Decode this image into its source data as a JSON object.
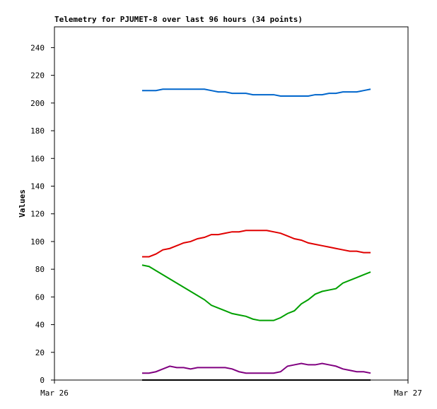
{
  "chart_data": {
    "type": "line",
    "title": "Telemetry for PJUMET-8 over last 96 hours (34 points)",
    "y_label": "Values",
    "x": [
      5.95,
      6.42,
      6.89,
      7.36,
      7.83,
      8.3,
      8.77,
      9.24,
      9.71,
      10.18,
      10.65,
      11.12,
      11.59,
      12.06,
      12.53,
      13.0,
      13.47,
      13.94,
      14.41,
      14.88,
      15.35,
      15.82,
      16.29,
      16.76,
      17.23,
      17.7,
      18.17,
      18.64,
      19.11,
      19.58,
      20.05,
      20.52,
      20.99,
      21.46
    ],
    "xlim": [
      0,
      24
    ],
    "xticks": [
      {
        "value": 0,
        "label": "Mar 26"
      },
      {
        "value": 24,
        "label": "Mar 27"
      }
    ],
    "ylim": [
      0,
      255
    ],
    "yticks": [
      0,
      20,
      40,
      60,
      80,
      100,
      120,
      140,
      160,
      180,
      200,
      220,
      240
    ],
    "grid": false,
    "series": [
      {
        "color": "#0066cc",
        "values": [
          209,
          209,
          209,
          210,
          210,
          210,
          210,
          210,
          210,
          210,
          209,
          208,
          208,
          207,
          207,
          207,
          206,
          206,
          206,
          206,
          205,
          205,
          205,
          205,
          205,
          206,
          206,
          207,
          207,
          208,
          208,
          208,
          209,
          210
        ]
      },
      {
        "color": "#e00000",
        "values": [
          89,
          89,
          91,
          94,
          95,
          97,
          99,
          100,
          102,
          103,
          105,
          105,
          106,
          107,
          107,
          108,
          108,
          108,
          108,
          107,
          106,
          104,
          102,
          101,
          99,
          98,
          97,
          96,
          95,
          94,
          93,
          93,
          92,
          92
        ]
      },
      {
        "color": "#00a000",
        "values": [
          83,
          82,
          79,
          76,
          73,
          70,
          67,
          64,
          61,
          58,
          54,
          52,
          50,
          48,
          47,
          46,
          44,
          43,
          43,
          43,
          45,
          48,
          50,
          55,
          58,
          62,
          64,
          65,
          66,
          70,
          72,
          74,
          76,
          78
        ]
      },
      {
        "color": "#800080",
        "values": [
          5,
          5,
          6,
          8,
          10,
          9,
          9,
          8,
          9,
          9,
          9,
          9,
          9,
          8,
          6,
          5,
          5,
          5,
          5,
          5,
          6,
          10,
          11,
          12,
          11,
          11,
          12,
          11,
          10,
          8,
          7,
          6,
          6,
          5
        ]
      },
      {
        "color": "#000000",
        "values": [
          0,
          0,
          0,
          0,
          0,
          0,
          0,
          0,
          0,
          0,
          0,
          0,
          0,
          0,
          0,
          0,
          0,
          0,
          0,
          0,
          0,
          0,
          0,
          0,
          0,
          0,
          0,
          0,
          0,
          0,
          0,
          0,
          0,
          0
        ]
      }
    ]
  }
}
